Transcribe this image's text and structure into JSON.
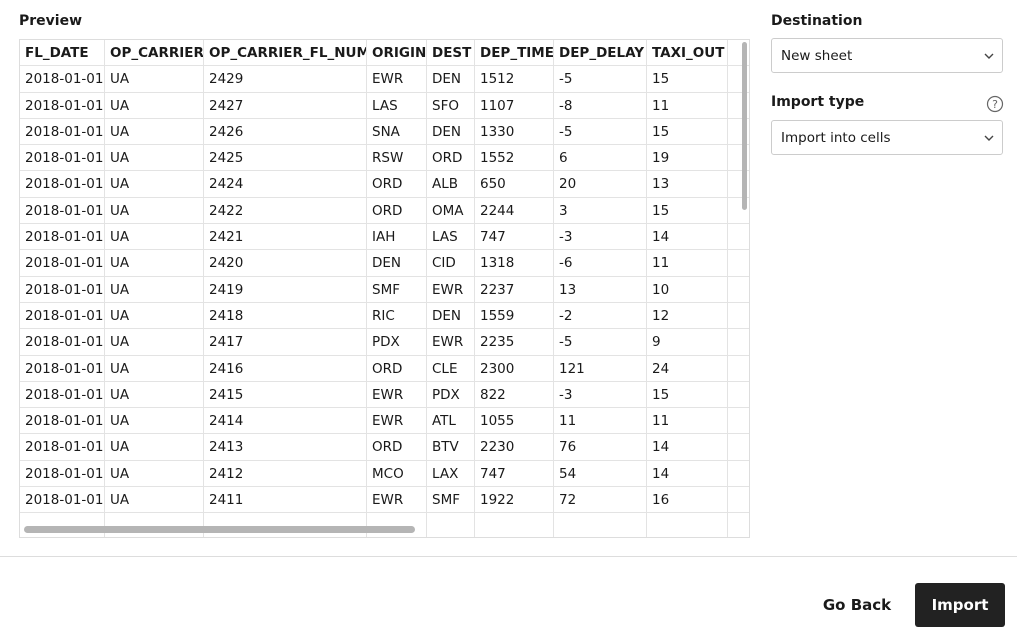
{
  "preview": {
    "title": "Preview",
    "table": {
      "columns": [
        "FL_DATE",
        "OP_CARRIER",
        "OP_CARRIER_FL_NUM",
        "ORIGIN",
        "DEST",
        "DEP_TIME",
        "DEP_DELAY",
        "TAXI_OUT"
      ],
      "rows": [
        [
          "2018-01-01",
          "UA",
          2429,
          "EWR",
          "DEN",
          1512,
          -5,
          15
        ],
        [
          "2018-01-01",
          "UA",
          2427,
          "LAS",
          "SFO",
          1107,
          -8,
          11
        ],
        [
          "2018-01-01",
          "UA",
          2426,
          "SNA",
          "DEN",
          1330,
          -5,
          15
        ],
        [
          "2018-01-01",
          "UA",
          2425,
          "RSW",
          "ORD",
          1552,
          6,
          19
        ],
        [
          "2018-01-01",
          "UA",
          2424,
          "ORD",
          "ALB",
          650,
          20,
          13
        ],
        [
          "2018-01-01",
          "UA",
          2422,
          "ORD",
          "OMA",
          2244,
          3,
          15
        ],
        [
          "2018-01-01",
          "UA",
          2421,
          "IAH",
          "LAS",
          747,
          -3,
          14
        ],
        [
          "2018-01-01",
          "UA",
          2420,
          "DEN",
          "CID",
          1318,
          -6,
          11
        ],
        [
          "2018-01-01",
          "UA",
          2419,
          "SMF",
          "EWR",
          2237,
          13,
          10
        ],
        [
          "2018-01-01",
          "UA",
          2418,
          "RIC",
          "DEN",
          1559,
          -2,
          12
        ],
        [
          "2018-01-01",
          "UA",
          2417,
          "PDX",
          "EWR",
          2235,
          -5,
          9
        ],
        [
          "2018-01-01",
          "UA",
          2416,
          "ORD",
          "CLE",
          2300,
          121,
          24
        ],
        [
          "2018-01-01",
          "UA",
          2415,
          "EWR",
          "PDX",
          822,
          -3,
          15
        ],
        [
          "2018-01-01",
          "UA",
          2414,
          "EWR",
          "ATL",
          1055,
          11,
          11
        ],
        [
          "2018-01-01",
          "UA",
          2413,
          "ORD",
          "BTV",
          2230,
          76,
          14
        ],
        [
          "2018-01-01",
          "UA",
          2412,
          "MCO",
          "LAX",
          747,
          54,
          14
        ],
        [
          "2018-01-01",
          "UA",
          2411,
          "EWR",
          "SMF",
          1922,
          72,
          16
        ]
      ]
    }
  },
  "destination": {
    "label": "Destination",
    "value": "New sheet"
  },
  "import_type": {
    "label": "Import type",
    "value": "Import into cells"
  },
  "footer": {
    "back": "Go Back",
    "import": "Import"
  }
}
